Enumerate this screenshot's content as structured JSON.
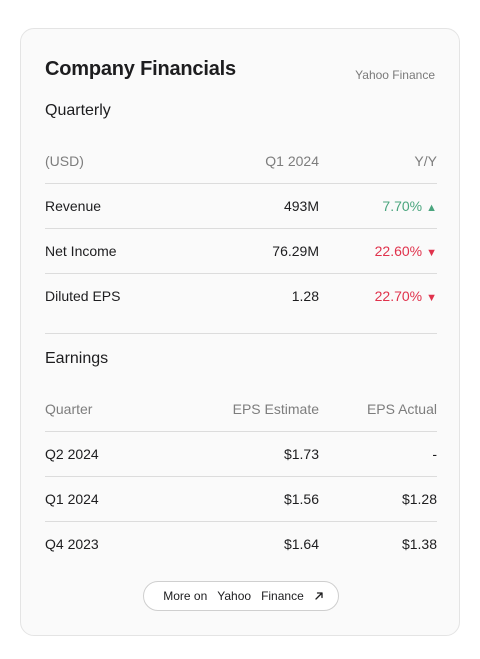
{
  "card": {
    "title": "Company Financials",
    "source": "Yahoo Finance"
  },
  "quarterly": {
    "title": "Quarterly",
    "headers": [
      "(USD)",
      "Q1 2024",
      "Y/Y"
    ],
    "rows": [
      {
        "label": "Revenue",
        "value": "493M",
        "change": "7.70%",
        "direction": "up"
      },
      {
        "label": "Net Income",
        "value": "76.29M",
        "change": "22.60%",
        "direction": "down"
      },
      {
        "label": "Diluted EPS",
        "value": "1.28",
        "change": "22.70%",
        "direction": "down"
      }
    ],
    "up_arrow": "▲",
    "down_arrow": "▼"
  },
  "earnings": {
    "title": "Earnings",
    "headers": [
      "Quarter",
      "EPS Estimate",
      "EPS Actual"
    ],
    "rows": [
      {
        "quarter": "Q2 2024",
        "estimate": "$1.73",
        "actual": "-"
      },
      {
        "quarter": "Q1 2024",
        "estimate": "$1.56",
        "actual": "$1.28"
      },
      {
        "quarter": "Q4 2023",
        "estimate": "$1.64",
        "actual": "$1.38"
      }
    ]
  },
  "more_button": {
    "words": [
      "More on",
      "Yahoo",
      "Finance"
    ],
    "icon": "external-link-icon"
  },
  "colors": {
    "positive": "#4aa57e",
    "negative": "#e0324c"
  }
}
